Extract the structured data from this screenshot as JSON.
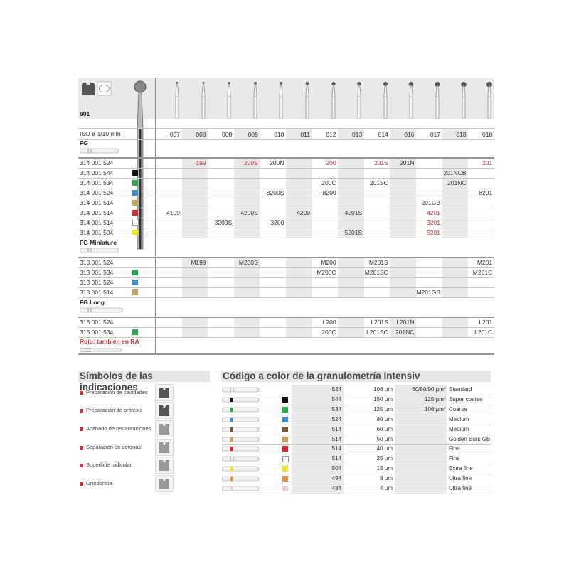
{
  "product": {
    "code": "801",
    "iso_label": "ISO ø 1/10 mm",
    "iso_sizes": [
      "007",
      "008",
      "008",
      "009",
      "010",
      "011",
      "012",
      "013",
      "014",
      "016",
      "017",
      "018",
      "018"
    ]
  },
  "colors": {
    "none": "",
    "black": "#111111",
    "green": "#2aa84a",
    "blue": "#3a8fd6",
    "brown": "#7a5a3a",
    "gold": "#c9a35a",
    "red": "#d9262e",
    "white": "#ffffff",
    "yellow": "#f2e21d",
    "orange": "#e8894a",
    "pink": "#f4c5d8",
    "accent_red": "#c8343f"
  },
  "groups": [
    {
      "name": "FG",
      "rows": [
        {
          "ref": "314 001 524",
          "color": "none",
          "cells": [
            "",
            "199*",
            "",
            "200S*",
            "200N",
            "",
            "200*",
            "",
            "201S*",
            "201N",
            "",
            "",
            "201*"
          ]
        },
        {
          "ref": "314 001 544",
          "color": "black",
          "cells": [
            "",
            "",
            "",
            "",
            "",
            "",
            "",
            "",
            "",
            "",
            "",
            "201NCB",
            ""
          ]
        },
        {
          "ref": "314 001 534",
          "color": "green",
          "cells": [
            "",
            "",
            "",
            "",
            "",
            "",
            "200C",
            "",
            "201SC",
            "",
            "",
            "201NC",
            ""
          ]
        },
        {
          "ref": "314 001 524",
          "color": "blue",
          "cells": [
            "",
            "",
            "",
            "",
            "8200S",
            "",
            "8200",
            "",
            "",
            "",
            "",
            "",
            "8201"
          ]
        },
        {
          "ref": "314 001 514",
          "color": "gold",
          "cells": [
            "",
            "",
            "",
            "",
            "",
            "",
            "",
            "",
            "",
            "",
            "201GB",
            "",
            ""
          ]
        },
        {
          "ref": "314 001 514",
          "color": "red",
          "cells": [
            "4199",
            "",
            "",
            "4200S",
            "",
            "4200",
            "",
            "4201S",
            "",
            "",
            "4201*",
            "",
            ""
          ]
        },
        {
          "ref": "314 001 514",
          "color": "white",
          "cells": [
            "",
            "",
            "3200S",
            "",
            "3200",
            "",
            "",
            "",
            "",
            "",
            "3201*",
            "",
            ""
          ]
        },
        {
          "ref": "314 001 504",
          "color": "yellow",
          "cells": [
            "",
            "",
            "",
            "",
            "",
            "",
            "",
            "5201S",
            "",
            "",
            "5201*",
            "",
            ""
          ]
        }
      ]
    },
    {
      "name": "FG Miniature",
      "rows": [
        {
          "ref": "313 001 524",
          "color": "none",
          "cells": [
            "",
            "M199",
            "",
            "M200S",
            "",
            "",
            "M200",
            "",
            "M201S",
            "",
            "",
            "",
            "M201"
          ]
        },
        {
          "ref": "313 001 534",
          "color": "green",
          "cells": [
            "",
            "",
            "",
            "",
            "",
            "",
            "M200C",
            "",
            "M201SC",
            "",
            "",
            "",
            "M201C"
          ]
        },
        {
          "ref": "313 001 524",
          "color": "blue",
          "cells": [
            "",
            "",
            "",
            "",
            "",
            "",
            "",
            "",
            "",
            "",
            "",
            "",
            ""
          ]
        },
        {
          "ref": "313 001 514",
          "color": "gold",
          "cells": [
            "",
            "",
            "",
            "",
            "",
            "",
            "",
            "",
            "",
            "",
            "M201GB",
            "",
            ""
          ]
        }
      ]
    },
    {
      "name": "FG Long",
      "rows": [
        {
          "ref": "315 001 524",
          "color": "none",
          "cells": [
            "",
            "",
            "",
            "",
            "",
            "",
            "L200",
            "",
            "L201S",
            "L201N",
            "",
            "",
            "L201"
          ]
        },
        {
          "ref": "315 001 534",
          "color": "green",
          "cells": [
            "",
            "",
            "",
            "",
            "",
            "",
            "L200C",
            "",
            "L201SC",
            "L201NC",
            "",
            "",
            "L201C"
          ]
        }
      ]
    }
  ],
  "note": "Rojo: también en RA",
  "indications": {
    "title": "Símbolos de las indicaciones",
    "items": [
      "Preparación de cavidades",
      "Preparación de prótesis",
      "Acabado de restauraciones",
      "Separación de coronas",
      "Superficie radicular",
      "Ortodoncia"
    ]
  },
  "grit": {
    "title": "Código a color de la granulometría Intensiv",
    "rows": [
      {
        "color": "none",
        "code": "524",
        "size": "106 µm",
        "alt": "60/80/90 µm*",
        "label": "Standard"
      },
      {
        "color": "black",
        "code": "544",
        "size": "150 µm",
        "alt": "125 µm*",
        "label": "Super coarse"
      },
      {
        "color": "green",
        "code": "534",
        "size": "125 µm",
        "alt": "106 µm*",
        "label": "Coarse"
      },
      {
        "color": "blue",
        "code": "524",
        "size": "80 µm",
        "alt": "",
        "label": "Medium"
      },
      {
        "color": "brown",
        "code": "514",
        "size": "60 µm",
        "alt": "",
        "label": "Medium"
      },
      {
        "color": "gold",
        "code": "514",
        "size": "50 µm",
        "alt": "",
        "label": "Golden Burs GB"
      },
      {
        "color": "red",
        "code": "514",
        "size": "40 µm",
        "alt": "",
        "label": "Fine"
      },
      {
        "color": "white",
        "code": "514",
        "size": "25 µm",
        "alt": "",
        "label": "Fine"
      },
      {
        "color": "yellow",
        "code": "504",
        "size": "15 µm",
        "alt": "",
        "label": "Extra fine"
      },
      {
        "color": "orange",
        "code": "494",
        "size": "8 µm",
        "alt": "",
        "label": "Ultra fine"
      },
      {
        "color": "pink",
        "code": "484",
        "size": "4 µm",
        "alt": "",
        "label": "Ultra fine"
      }
    ]
  }
}
